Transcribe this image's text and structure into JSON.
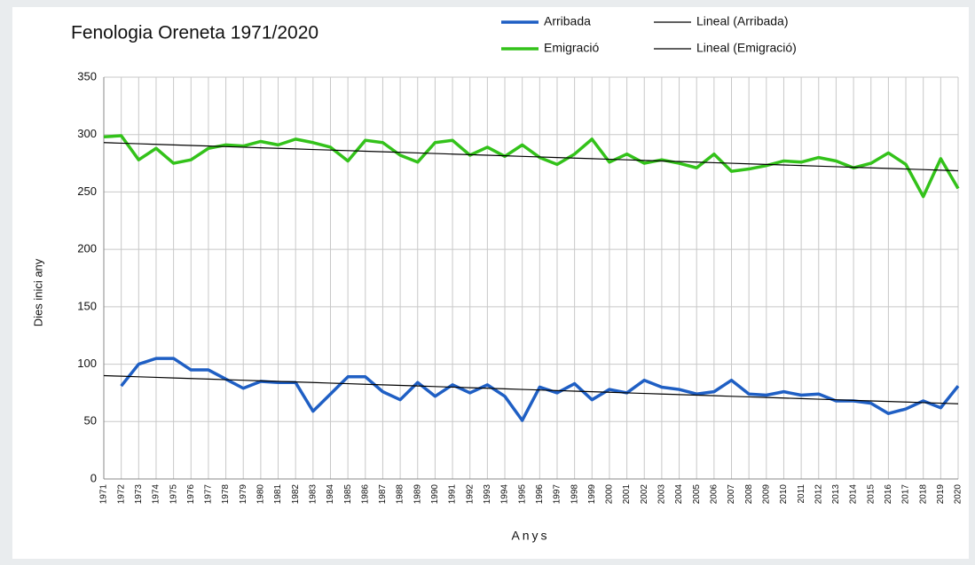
{
  "chart_data": {
    "type": "line",
    "title": "Fenologia Oreneta 1971/2020",
    "x_label": "Anys",
    "y_label": "Dies inici any",
    "categories": [
      "1971",
      "1972",
      "1973",
      "1974",
      "1975",
      "1976",
      "1977",
      "1978",
      "1979",
      "1980",
      "1981",
      "1982",
      "1983",
      "1984",
      "1985",
      "1986",
      "1987",
      "1988",
      "1989",
      "1990",
      "1991",
      "1992",
      "1993",
      "1994",
      "1995",
      "1996",
      "1997",
      "1998",
      "1999",
      "2000",
      "2001",
      "2002",
      "2003",
      "2004",
      "2005",
      "2006",
      "2007",
      "2008",
      "2009",
      "2010",
      "2011",
      "2012",
      "2013",
      "2014",
      "2015",
      "2016",
      "2017",
      "2018",
      "2019",
      "2020"
    ],
    "series": [
      {
        "name": "Arribada",
        "color": "#1f5fc4",
        "width": 3.5,
        "values": [
          null,
          81,
          100,
          105,
          105,
          95,
          95,
          87,
          79,
          85,
          84,
          84,
          59,
          74,
          89,
          89,
          76,
          69,
          84,
          72,
          82,
          75,
          82,
          72,
          51,
          80,
          75,
          83,
          69,
          78,
          75,
          86,
          80,
          78,
          74,
          76,
          86,
          74,
          73,
          76,
          73,
          74,
          68,
          68,
          66,
          57,
          61,
          68,
          62,
          81
        ]
      },
      {
        "name": "Emigració",
        "color": "#33c21a",
        "width": 3.5,
        "values": [
          298,
          299,
          278,
          288,
          275,
          278,
          288,
          291,
          290,
          294,
          291,
          296,
          293,
          289,
          277,
          295,
          293,
          282,
          276,
          293,
          295,
          282,
          289,
          281,
          291,
          280,
          274,
          283,
          296,
          276,
          283,
          275,
          278,
          275,
          271,
          283,
          268,
          270,
          273,
          277,
          276,
          280,
          277,
          271,
          275,
          284,
          274,
          246,
          279,
          253
        ]
      },
      {
        "name": "Lineal (Arribada)",
        "color": "#000000",
        "width": 1.2,
        "values": [
          90,
          89.5,
          89,
          88.5,
          88,
          87.5,
          87,
          86.5,
          86,
          85.5,
          85,
          84.5,
          84,
          83.5,
          83,
          82.5,
          82,
          81.5,
          81,
          80.5,
          80,
          79.5,
          79,
          78.5,
          78,
          77.5,
          77,
          76.5,
          76,
          75.5,
          75,
          74.5,
          74,
          73.5,
          73,
          72.5,
          72,
          71.5,
          71,
          70.5,
          70,
          69.5,
          69,
          68.5,
          68,
          67.5,
          67,
          66.5,
          66,
          65.5
        ]
      },
      {
        "name": "Lineal (Emigració)",
        "color": "#000000",
        "width": 1.2,
        "values": [
          293,
          292.5,
          292,
          291.5,
          291,
          290.5,
          290,
          289.5,
          289,
          288.5,
          288,
          287.5,
          287,
          286.5,
          286,
          285.5,
          285,
          284.5,
          284,
          283.5,
          283,
          282.5,
          282,
          281.5,
          281,
          280.5,
          280,
          279.5,
          279,
          278.5,
          278,
          277.5,
          277,
          276.5,
          276,
          275.5,
          275,
          274.5,
          274,
          273.5,
          273,
          272.5,
          272,
          271.5,
          271,
          270.5,
          270,
          269.5,
          269,
          268.5
        ]
      }
    ],
    "ylim": [
      0,
      350
    ],
    "yticks": [
      0,
      50,
      100,
      150,
      200,
      250,
      300,
      350
    ],
    "grid": true
  }
}
